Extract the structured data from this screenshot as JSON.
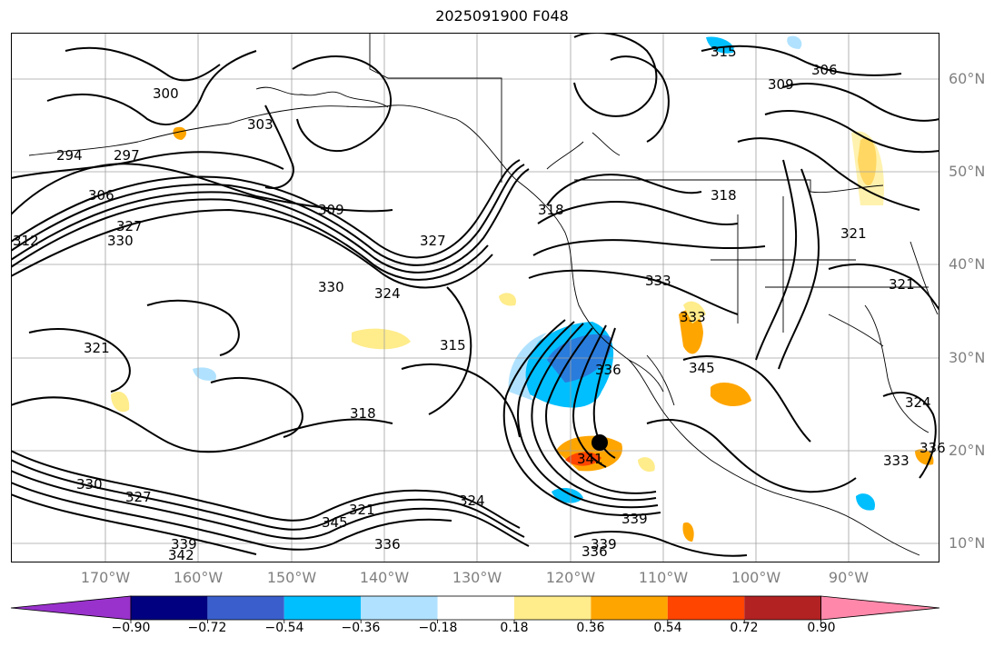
{
  "title": "2025091900 F048",
  "map": {
    "latitude_labels": [
      "60°N",
      "50°N",
      "40°N",
      "30°N",
      "20°N",
      "10°N"
    ],
    "longitude_labels": [
      "170°W",
      "160°W",
      "150°W",
      "140°W",
      "130°W",
      "120°W",
      "110°W",
      "100°W",
      "90°W"
    ],
    "contour_labels": [
      "300",
      "294",
      "297",
      "303",
      "306",
      "309",
      "312",
      "327",
      "330",
      "330",
      "324",
      "321",
      "315",
      "318",
      "318",
      "327",
      "330",
      "327",
      "336",
      "339",
      "342",
      "345",
      "321",
      "324",
      "339",
      "336",
      "339",
      "333",
      "333",
      "336",
      "345",
      "315",
      "306",
      "309",
      "318",
      "321",
      "321",
      "333",
      "336",
      "324",
      "341"
    ],
    "storm_marker": "black-dot"
  },
  "colorbar": {
    "tick_labels": [
      "−0.90",
      "−0.72",
      "−0.54",
      "−0.36",
      "−0.18",
      "0.18",
      "0.36",
      "0.54",
      "0.72",
      "0.90"
    ],
    "colors": [
      "#9932cc",
      "#000080",
      "#3a5fcd",
      "#00bfff",
      "#b0e2ff",
      "#ffffff",
      "#ffec8b",
      "#ffa500",
      "#ff4500",
      "#b22222",
      "#ff88aa"
    ]
  }
}
